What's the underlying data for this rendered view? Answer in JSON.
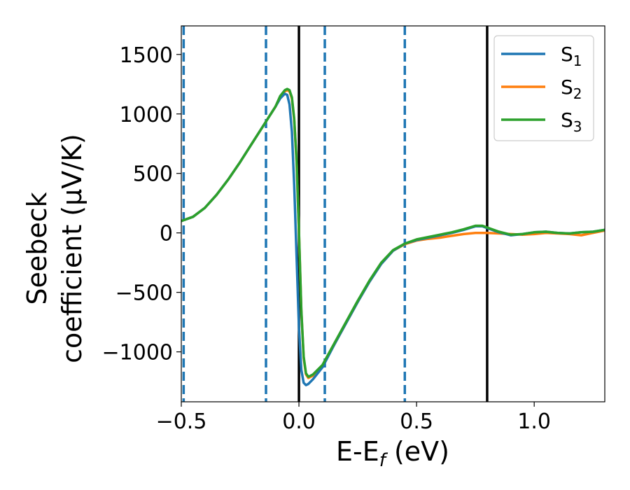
{
  "chart_data": {
    "type": "line",
    "xlabel_parts": [
      "E-E",
      "f",
      " (eV)"
    ],
    "ylabel_lines": [
      "Seebeck",
      "coefficient  (μV/K)"
    ],
    "xlim": [
      -0.5,
      1.3
    ],
    "ylim": [
      -1420,
      1740
    ],
    "x_ticks": [
      -0.5,
      0.0,
      0.5,
      1.0
    ],
    "x_tick_labels": [
      "−0.5",
      "0.0",
      "0.5",
      "1.0"
    ],
    "y_ticks": [
      -1000,
      -500,
      0,
      500,
      1000,
      1500
    ],
    "y_tick_labels": [
      "−1000",
      "−500",
      "0",
      "500",
      "1000",
      "1500"
    ],
    "grid": false,
    "legend_position": "top-right",
    "vertical_lines": [
      {
        "x": -0.49,
        "style": "dashed",
        "color": "#1f77b4"
      },
      {
        "x": -0.14,
        "style": "dashed",
        "color": "#1f77b4"
      },
      {
        "x": 0.0,
        "style": "solid",
        "color": "#000000"
      },
      {
        "x": 0.11,
        "style": "dashed",
        "color": "#1f77b4"
      },
      {
        "x": 0.45,
        "style": "dashed",
        "color": "#1f77b4"
      },
      {
        "x": 0.8,
        "style": "solid",
        "color": "#000000"
      }
    ],
    "series": [
      {
        "name": "S",
        "subscript": "1",
        "color": "#1f77b4",
        "points": [
          [
            -0.5,
            100
          ],
          [
            -0.45,
            135
          ],
          [
            -0.4,
            210
          ],
          [
            -0.35,
            320
          ],
          [
            -0.3,
            450
          ],
          [
            -0.25,
            595
          ],
          [
            -0.2,
            750
          ],
          [
            -0.15,
            905
          ],
          [
            -0.1,
            1060
          ],
          [
            -0.08,
            1130
          ],
          [
            -0.06,
            1170
          ],
          [
            -0.05,
            1160
          ],
          [
            -0.04,
            1080
          ],
          [
            -0.03,
            850
          ],
          [
            -0.02,
            400
          ],
          [
            -0.01,
            -200
          ],
          [
            0.0,
            -800
          ],
          [
            0.01,
            -1150
          ],
          [
            0.02,
            -1260
          ],
          [
            0.03,
            -1280
          ],
          [
            0.04,
            -1270
          ],
          [
            0.06,
            -1230
          ],
          [
            0.1,
            -1130
          ],
          [
            0.15,
            -940
          ],
          [
            0.2,
            -760
          ],
          [
            0.25,
            -580
          ],
          [
            0.3,
            -410
          ],
          [
            0.35,
            -260
          ],
          [
            0.4,
            -150
          ],
          [
            0.45,
            -90
          ],
          [
            0.5,
            -60
          ],
          [
            0.55,
            -40
          ],
          [
            0.6,
            -20
          ],
          [
            0.65,
            0
          ],
          [
            0.7,
            25
          ],
          [
            0.75,
            55
          ],
          [
            0.78,
            55
          ],
          [
            0.8,
            40
          ],
          [
            0.85,
            5
          ],
          [
            0.9,
            -20
          ],
          [
            0.95,
            -10
          ],
          [
            1.0,
            5
          ],
          [
            1.05,
            10
          ],
          [
            1.1,
            0
          ],
          [
            1.15,
            -5
          ],
          [
            1.2,
            5
          ],
          [
            1.25,
            10
          ],
          [
            1.3,
            25
          ]
        ]
      },
      {
        "name": "S",
        "subscript": "2",
        "color": "#ff7f0e",
        "points": [
          [
            -0.5,
            100
          ],
          [
            -0.45,
            135
          ],
          [
            -0.4,
            210
          ],
          [
            -0.35,
            320
          ],
          [
            -0.3,
            450
          ],
          [
            -0.25,
            595
          ],
          [
            -0.2,
            750
          ],
          [
            -0.15,
            905
          ],
          [
            -0.1,
            1060
          ],
          [
            -0.08,
            1140
          ],
          [
            -0.06,
            1190
          ],
          [
            -0.05,
            1200
          ],
          [
            -0.04,
            1190
          ],
          [
            -0.03,
            1130
          ],
          [
            -0.02,
            950
          ],
          [
            -0.01,
            600
          ],
          [
            0.0,
            0
          ],
          [
            0.01,
            -650
          ],
          [
            0.02,
            -1050
          ],
          [
            0.03,
            -1190
          ],
          [
            0.04,
            -1220
          ],
          [
            0.06,
            -1200
          ],
          [
            0.1,
            -1120
          ],
          [
            0.15,
            -940
          ],
          [
            0.2,
            -760
          ],
          [
            0.25,
            -580
          ],
          [
            0.3,
            -410
          ],
          [
            0.35,
            -260
          ],
          [
            0.4,
            -150
          ],
          [
            0.45,
            -95
          ],
          [
            0.5,
            -65
          ],
          [
            0.55,
            -50
          ],
          [
            0.6,
            -40
          ],
          [
            0.65,
            -25
          ],
          [
            0.7,
            -10
          ],
          [
            0.75,
            0
          ],
          [
            0.8,
            0
          ],
          [
            0.85,
            -5
          ],
          [
            0.9,
            -10
          ],
          [
            0.95,
            -15
          ],
          [
            1.0,
            -10
          ],
          [
            1.05,
            0
          ],
          [
            1.1,
            -5
          ],
          [
            1.15,
            -10
          ],
          [
            1.2,
            -20
          ],
          [
            1.25,
            0
          ],
          [
            1.3,
            20
          ]
        ]
      },
      {
        "name": "S",
        "subscript": "3",
        "color": "#2ca02c",
        "points": [
          [
            -0.5,
            100
          ],
          [
            -0.45,
            135
          ],
          [
            -0.4,
            210
          ],
          [
            -0.35,
            320
          ],
          [
            -0.3,
            450
          ],
          [
            -0.25,
            595
          ],
          [
            -0.2,
            750
          ],
          [
            -0.15,
            905
          ],
          [
            -0.1,
            1060
          ],
          [
            -0.08,
            1150
          ],
          [
            -0.06,
            1200
          ],
          [
            -0.05,
            1210
          ],
          [
            -0.04,
            1200
          ],
          [
            -0.03,
            1140
          ],
          [
            -0.02,
            960
          ],
          [
            -0.01,
            610
          ],
          [
            0.0,
            10
          ],
          [
            0.01,
            -640
          ],
          [
            0.02,
            -1040
          ],
          [
            0.03,
            -1180
          ],
          [
            0.04,
            -1210
          ],
          [
            0.06,
            -1190
          ],
          [
            0.1,
            -1110
          ],
          [
            0.15,
            -930
          ],
          [
            0.2,
            -750
          ],
          [
            0.25,
            -570
          ],
          [
            0.3,
            -400
          ],
          [
            0.35,
            -250
          ],
          [
            0.4,
            -145
          ],
          [
            0.45,
            -90
          ],
          [
            0.5,
            -55
          ],
          [
            0.55,
            -35
          ],
          [
            0.6,
            -15
          ],
          [
            0.65,
            5
          ],
          [
            0.7,
            30
          ],
          [
            0.75,
            60
          ],
          [
            0.78,
            60
          ],
          [
            0.8,
            45
          ],
          [
            0.85,
            10
          ],
          [
            0.9,
            -15
          ],
          [
            0.95,
            -10
          ],
          [
            1.0,
            5
          ],
          [
            1.05,
            10
          ],
          [
            1.1,
            0
          ],
          [
            1.15,
            -5
          ],
          [
            1.2,
            5
          ],
          [
            1.25,
            10
          ],
          [
            1.3,
            25
          ]
        ]
      }
    ]
  }
}
